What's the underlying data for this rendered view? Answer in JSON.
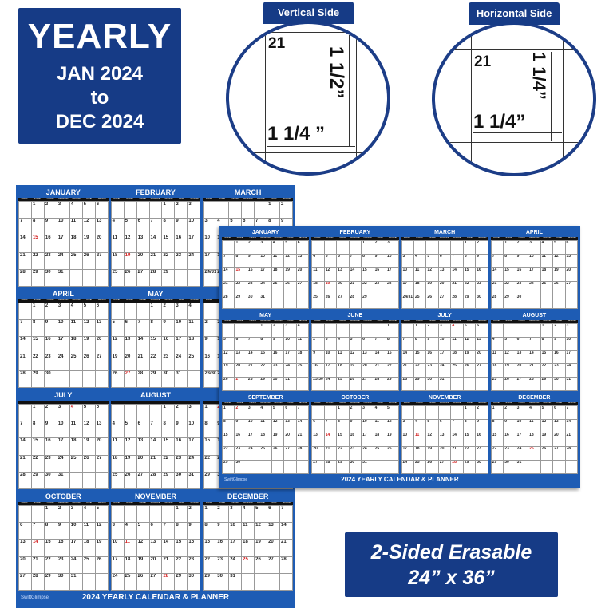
{
  "yearly_badge": {
    "title": "YEARLY",
    "line1": "JAN 2024",
    "line2": "to",
    "line3": "DEC 2024"
  },
  "vertical_detail": {
    "tab": "Vertical Side",
    "day": "21",
    "height": "1 1/2”",
    "width": "1 1/4 ”"
  },
  "horizontal_detail": {
    "tab": "Horizontal Side",
    "day": "21",
    "height": "1 1/4”",
    "width": "1 1/4”"
  },
  "size_badge": {
    "line1": "2-Sided Erasable",
    "line2": "24” x 36”"
  },
  "calendar": {
    "footer": "2024 YEARLY CALENDAR & PLANNER",
    "brand": "SwiftGlimpse",
    "weekdays": [
      "SUNDAY",
      "MONDAY",
      "TUESDAY",
      "WEDNESDAY",
      "THURSDAY",
      "FRIDAY",
      "SATURDAY"
    ],
    "months": [
      {
        "name": "JANUARY",
        "start": 1,
        "days": 31,
        "red": [
          15
        ]
      },
      {
        "name": "FEBRUARY",
        "start": 4,
        "days": 29,
        "red": [
          19
        ]
      },
      {
        "name": "MARCH",
        "start": 5,
        "days": 31,
        "red": []
      },
      {
        "name": "APRIL",
        "start": 1,
        "days": 30,
        "red": []
      },
      {
        "name": "MAY",
        "start": 3,
        "days": 31,
        "red": [
          27
        ]
      },
      {
        "name": "JUNE",
        "start": 6,
        "days": 30,
        "red": []
      },
      {
        "name": "JULY",
        "start": 1,
        "days": 31,
        "red": [
          4
        ]
      },
      {
        "name": "AUGUST",
        "start": 4,
        "days": 31,
        "red": []
      },
      {
        "name": "SEPTEMBER",
        "start": 0,
        "days": 30,
        "red": [
          2
        ]
      },
      {
        "name": "OCTOBER",
        "start": 2,
        "days": 31,
        "red": [
          14
        ]
      },
      {
        "name": "NOVEMBER",
        "start": 5,
        "days": 30,
        "red": [
          11,
          28
        ]
      },
      {
        "name": "DECEMBER",
        "start": 0,
        "days": 31,
        "red": [
          25
        ]
      }
    ]
  },
  "colors": {
    "brand_blue": "#163b86",
    "calendar_blue": "#1e5cb4",
    "holiday_red": "#d42020"
  }
}
